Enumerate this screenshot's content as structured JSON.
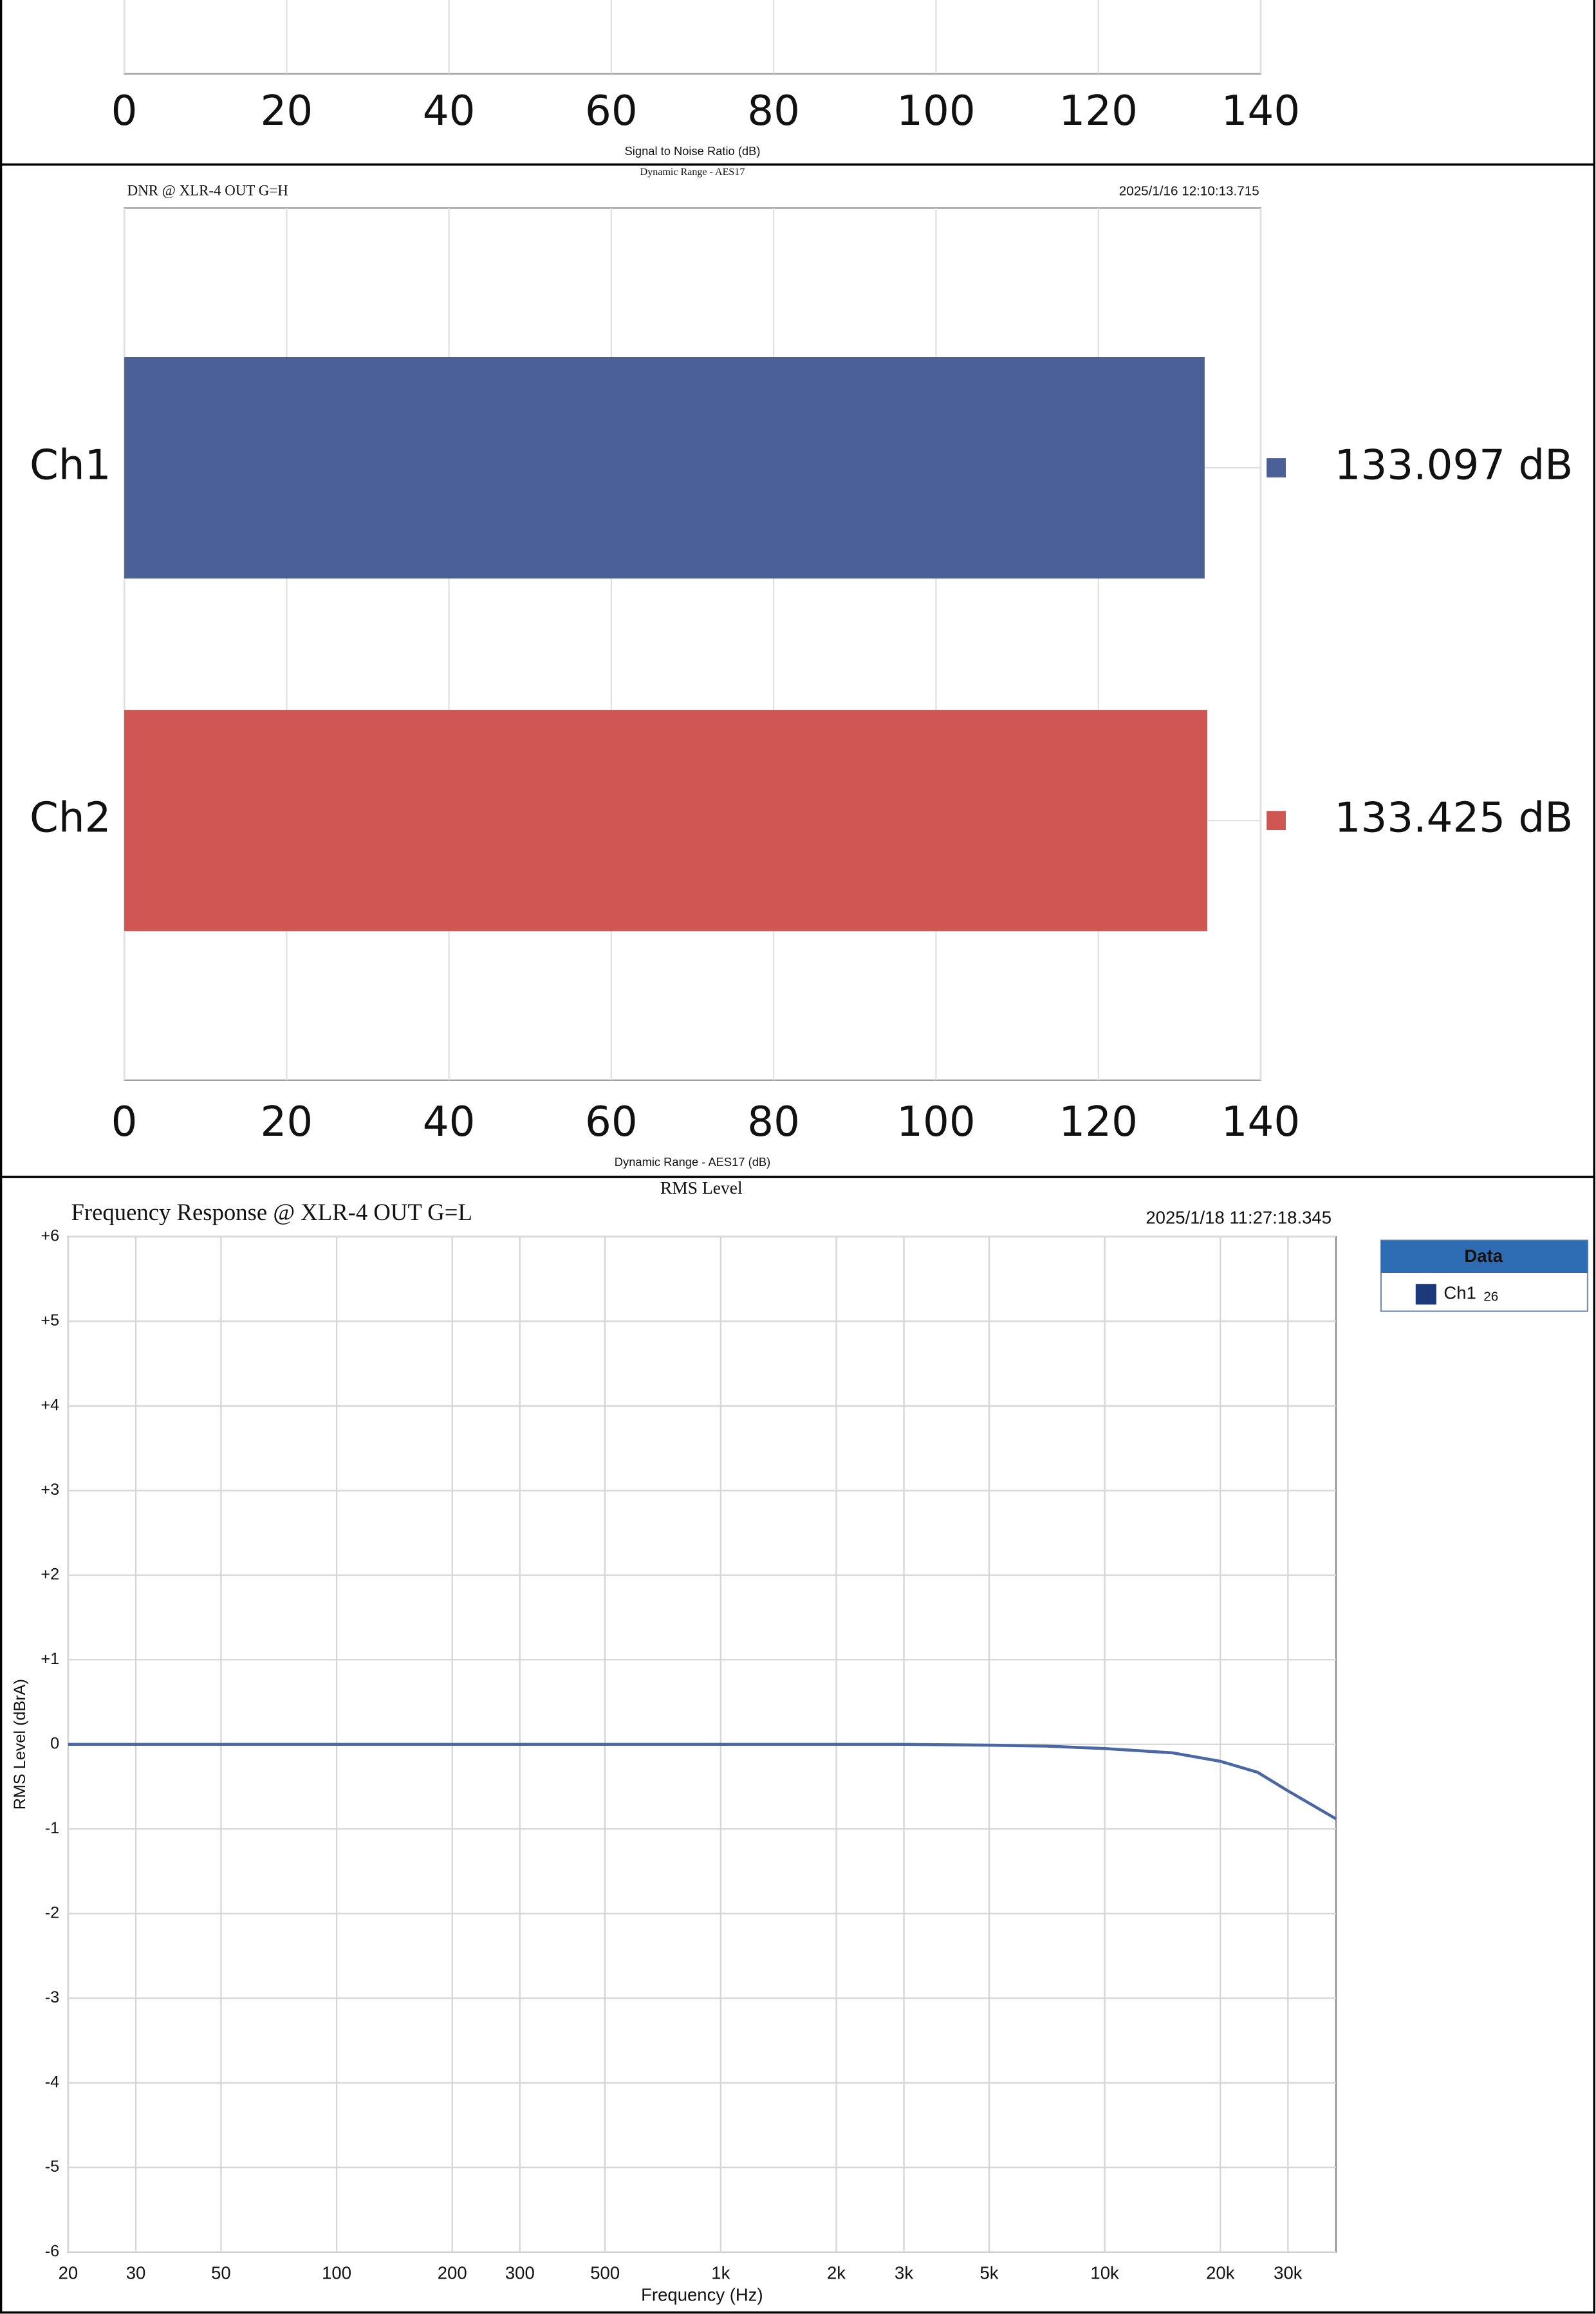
{
  "chart_data": [
    {
      "type": "bar",
      "orientation": "horizontal",
      "xlabel": "Signal to Noise Ratio (dB)",
      "xlim": [
        0,
        140
      ],
      "xticks": [
        0,
        20,
        40,
        60,
        80,
        100,
        120,
        140
      ],
      "grid": true
    },
    {
      "type": "bar",
      "orientation": "horizontal",
      "header": "Dynamic Range - AES17",
      "title": "DNR @ XLR-4 OUT G=H",
      "timestamp": "2025/1/16 12:10:13.715",
      "categories": [
        "Ch1",
        "Ch2"
      ],
      "values": [
        133.097,
        133.425
      ],
      "value_labels": [
        "133.097 dB",
        "133.425 dB"
      ],
      "colors": [
        "#4a6096",
        "#d05654"
      ],
      "xlabel": "Dynamic Range - AES17 (dB)",
      "xlim": [
        0,
        140
      ],
      "xticks": [
        0,
        20,
        40,
        60,
        80,
        100,
        120,
        140
      ],
      "grid": true
    },
    {
      "type": "line",
      "header": "RMS Level",
      "title": "Frequency Response @ XLR-4 OUT G=L",
      "timestamp": "2025/1/18 11:27:18.345",
      "xlabel": "Frequency (Hz)",
      "ylabel": "RMS Level (dBrA)",
      "xscale": "log",
      "x": [
        20,
        30,
        50,
        100,
        200,
        500,
        1000,
        2000,
        3000,
        5000,
        7000,
        10000,
        15000,
        20000,
        25000,
        30000,
        40000
      ],
      "series": [
        {
          "name": "Ch1",
          "color": "#4a67a3",
          "values": [
            0,
            0,
            0,
            0,
            0,
            0,
            0,
            0,
            0,
            -0.01,
            -0.02,
            -0.05,
            -0.1,
            -0.2,
            -0.33,
            -0.55,
            -0.88
          ]
        }
      ],
      "legend_title": "Data",
      "legend_note": "26",
      "xlim": [
        20,
        40000
      ],
      "xticks": [
        20,
        30,
        50,
        100,
        200,
        300,
        500,
        {
          "value": 1000,
          "label": "1k"
        },
        {
          "value": 2000,
          "label": "2k"
        },
        {
          "value": 3000,
          "label": "3k"
        },
        {
          "value": 5000,
          "label": "5k"
        },
        {
          "value": 10000,
          "label": "10k"
        },
        {
          "value": 20000,
          "label": "20k"
        },
        {
          "value": 30000,
          "label": "30k"
        }
      ],
      "ylim": [
        -6,
        6
      ],
      "yticks": [
        {
          "value": 6,
          "label": "+6"
        },
        {
          "value": 5,
          "label": "+5"
        },
        {
          "value": 4,
          "label": "+4"
        },
        {
          "value": 3,
          "label": "+3"
        },
        {
          "value": 2,
          "label": "+2"
        },
        {
          "value": 1,
          "label": "+1"
        },
        0,
        -1,
        -2,
        -3,
        -4,
        -5,
        -6
      ],
      "grid": true
    }
  ]
}
